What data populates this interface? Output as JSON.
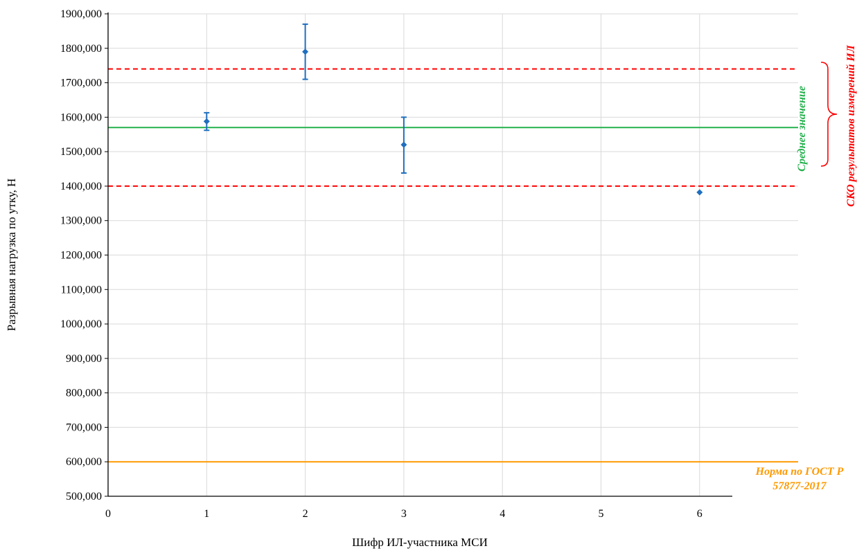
{
  "chart_data": {
    "type": "scatter",
    "xlabel": "Шифр ИЛ-участника МСИ",
    "ylabel": "Разрывная нагрузка по утку, Н",
    "xlim": [
      0,
      6.3
    ],
    "ylim": [
      500,
      1900
    ],
    "x_ticks": [
      "0",
      "1",
      "2",
      "3",
      "4",
      "5",
      "6"
    ],
    "y_ticks": [
      "500,000",
      "600,000",
      "700,000",
      "800,000",
      "900,000",
      "1000,000",
      "1100,000",
      "1200,000",
      "1300,000",
      "1400,000",
      "1500,000",
      "1600,000",
      "1700,000",
      "1800,000",
      "1900,000"
    ],
    "grid": true,
    "series": [
      {
        "color": "#1f6fbf",
        "points": [
          {
            "x": 1,
            "y": 1588,
            "err_low": 1562,
            "err_high": 1613
          },
          {
            "x": 2,
            "y": 1790,
            "err_low": 1710,
            "err_high": 1870
          },
          {
            "x": 3,
            "y": 1520,
            "err_low": 1438,
            "err_high": 1600
          },
          {
            "x": 6,
            "y": 1382
          }
        ]
      }
    ],
    "reference_lines": [
      {
        "kind": "mean",
        "y": 1570,
        "color": "#22b14c",
        "style": "solid"
      },
      {
        "kind": "sd-upper",
        "y": 1740,
        "color": "#ff0000",
        "style": "dashed"
      },
      {
        "kind": "sd-lower",
        "y": 1400,
        "color": "#ff0000",
        "style": "dashed"
      },
      {
        "kind": "norm",
        "y": 600,
        "color": "#ff9900",
        "style": "solid"
      }
    ],
    "annotations": {
      "mean_label": "Среднее значение",
      "sd_label": "СКО результатов измерений ИЛ",
      "norm_label_line1": "Норма по ГОСТ Р",
      "norm_label_line2": "57877-2017"
    },
    "colors": {
      "mean": "#22b14c",
      "sd": "#ff0000",
      "norm": "#ff9900",
      "grid": "#d9d9d9",
      "axis": "#000000"
    }
  }
}
